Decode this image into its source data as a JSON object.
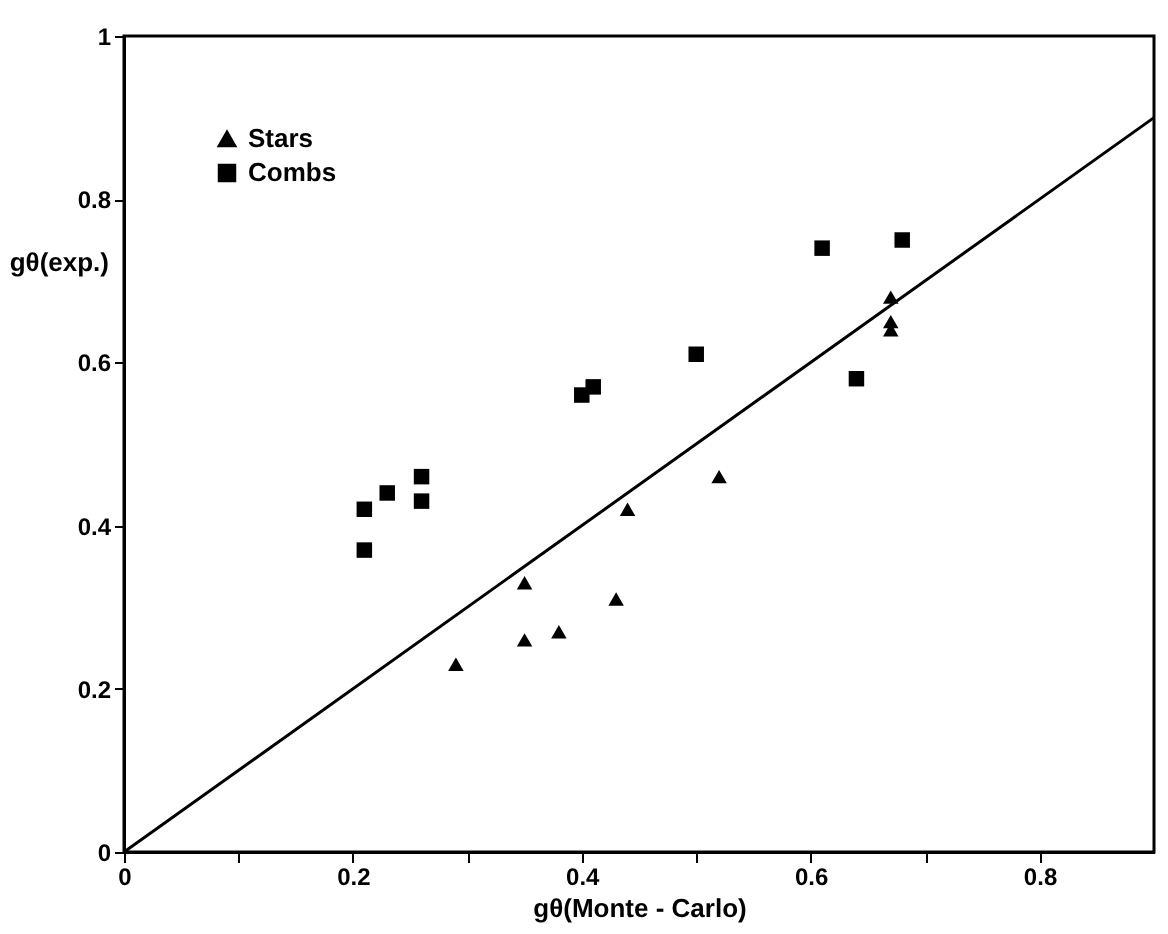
{
  "chart_data": {
    "type": "scatter",
    "xlabel": "gθ(Monte - Carlo)",
    "ylabel": "gθ(exp.)",
    "xlim": [
      0,
      0.9
    ],
    "ylim": [
      0,
      1
    ],
    "xticks": [
      0,
      {
        "value": 0.1,
        "label": null
      },
      0.2,
      {
        "value": 0.3,
        "label": null
      },
      0.4,
      {
        "value": 0.5,
        "label": null
      },
      0.6,
      {
        "value": 0.7,
        "label": null
      },
      0.8
    ],
    "yticks": [
      0,
      0.2,
      0.4,
      0.6,
      0.8,
      1
    ],
    "grid": false,
    "legend": "top left",
    "series": [
      {
        "name": "Stars",
        "color": "#000000",
        "marker": "triangle",
        "x": [
          0.29,
          0.35,
          0.35,
          0.38,
          0.43,
          0.44,
          0.52,
          0.67,
          0.67,
          0.67
        ],
        "values": [
          0.23,
          0.33,
          0.26,
          0.27,
          0.31,
          0.42,
          0.46,
          0.68,
          0.65,
          0.64
        ]
      },
      {
        "name": "Combs",
        "color": "#000000",
        "marker": "square",
        "x": [
          0.21,
          0.21,
          0.23,
          0.26,
          0.26,
          0.4,
          0.41,
          0.5,
          0.61,
          0.64,
          0.68
        ],
        "values": [
          0.37,
          0.42,
          0.44,
          0.46,
          0.43,
          0.56,
          0.57,
          0.61,
          0.74,
          0.58,
          0.75
        ]
      },
      {
        "type": "line",
        "color": "#000000",
        "x": [
          0,
          0.9
        ],
        "values": [
          0,
          0.9
        ]
      }
    ]
  }
}
